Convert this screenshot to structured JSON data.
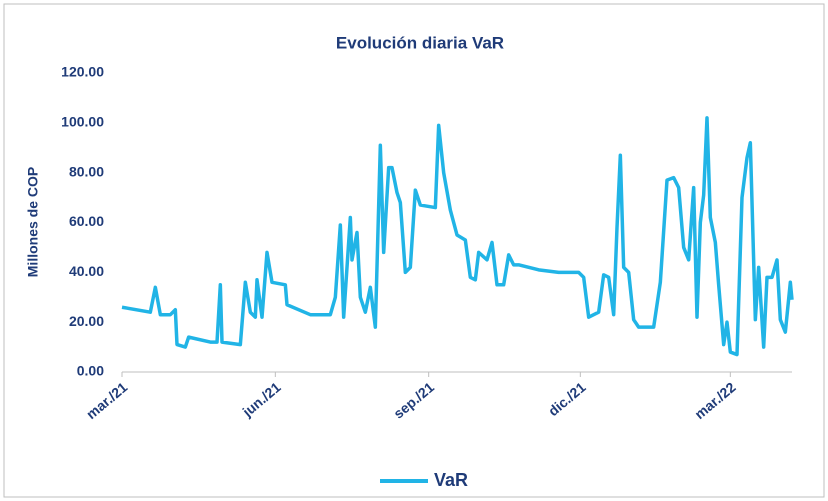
{
  "chart_data": {
    "type": "line",
    "title": "Evolución diaria  VaR",
    "ylabel": "Millones  de COP",
    "legend": "bottom",
    "grid": false,
    "x": [
      0,
      17,
      20,
      23,
      29,
      32,
      33,
      38,
      40,
      53,
      57,
      59,
      60,
      71,
      74,
      77,
      80,
      81,
      84,
      87,
      90,
      98,
      99,
      113,
      125,
      128,
      131,
      133,
      137,
      138,
      141,
      143,
      146,
      149,
      152,
      155,
      157,
      160,
      162,
      165,
      167,
      170,
      173,
      176,
      179,
      188,
      190,
      193,
      197,
      201,
      206,
      209,
      212,
      214,
      219,
      222,
      225,
      229,
      232,
      235,
      238,
      250,
      262,
      274,
      277,
      280,
      286,
      289,
      292,
      295,
      297,
      299,
      301,
      304,
      307,
      310,
      319,
      323,
      327,
      331,
      334,
      337,
      340,
      343,
      345,
      347,
      349,
      351,
      353,
      356,
      358,
      361,
      363,
      365,
      369,
      372,
      375,
      377,
      380,
      382,
      385,
      387,
      390,
      393,
      395,
      398,
      401,
      402
    ],
    "series": [
      {
        "name": "VaR",
        "color": "#21b4e6",
        "values": [
          26,
          24,
          34,
          23,
          23,
          25,
          11,
          10,
          14,
          12,
          12,
          35,
          12,
          11,
          36,
          24,
          22,
          37,
          22,
          48,
          36,
          35,
          27,
          23,
          23,
          30,
          59,
          22,
          62,
          45,
          56,
          30,
          24,
          34,
          18,
          91,
          48,
          82,
          82,
          72,
          68,
          40,
          42,
          73,
          67,
          66,
          99,
          80,
          65,
          55,
          53,
          38,
          37,
          48,
          45,
          52,
          35,
          35,
          47,
          43,
          43,
          41,
          40,
          40,
          38,
          22,
          24,
          39,
          38,
          23,
          58,
          87,
          42,
          40,
          21,
          18,
          18,
          36,
          77,
          78,
          74,
          50,
          45,
          74,
          22,
          60,
          71,
          102,
          62,
          52,
          35,
          11,
          20,
          8,
          7,
          70,
          86,
          92,
          21,
          42,
          10,
          38,
          38,
          45,
          21,
          16,
          36,
          29
        ]
      }
    ],
    "xlim": [
      0,
      402
    ],
    "xticks": [
      {
        "value": 0,
        "label": "mar./21"
      },
      {
        "value": 92,
        "label": "jun./21"
      },
      {
        "value": 184,
        "label": "sep./21"
      },
      {
        "value": 275,
        "label": "dic./21"
      },
      {
        "value": 365,
        "label": "mar./22"
      }
    ],
    "ylim": [
      0,
      120
    ],
    "yticks": [
      {
        "value": 0,
        "label": "0.00"
      },
      {
        "value": 20,
        "label": "20.00"
      },
      {
        "value": 40,
        "label": "40.00"
      },
      {
        "value": 60,
        "label": "60.00"
      },
      {
        "value": 80,
        "label": "80.00"
      },
      {
        "value": 100,
        "label": "100.00"
      },
      {
        "value": 120,
        "label": "120.00"
      }
    ]
  }
}
